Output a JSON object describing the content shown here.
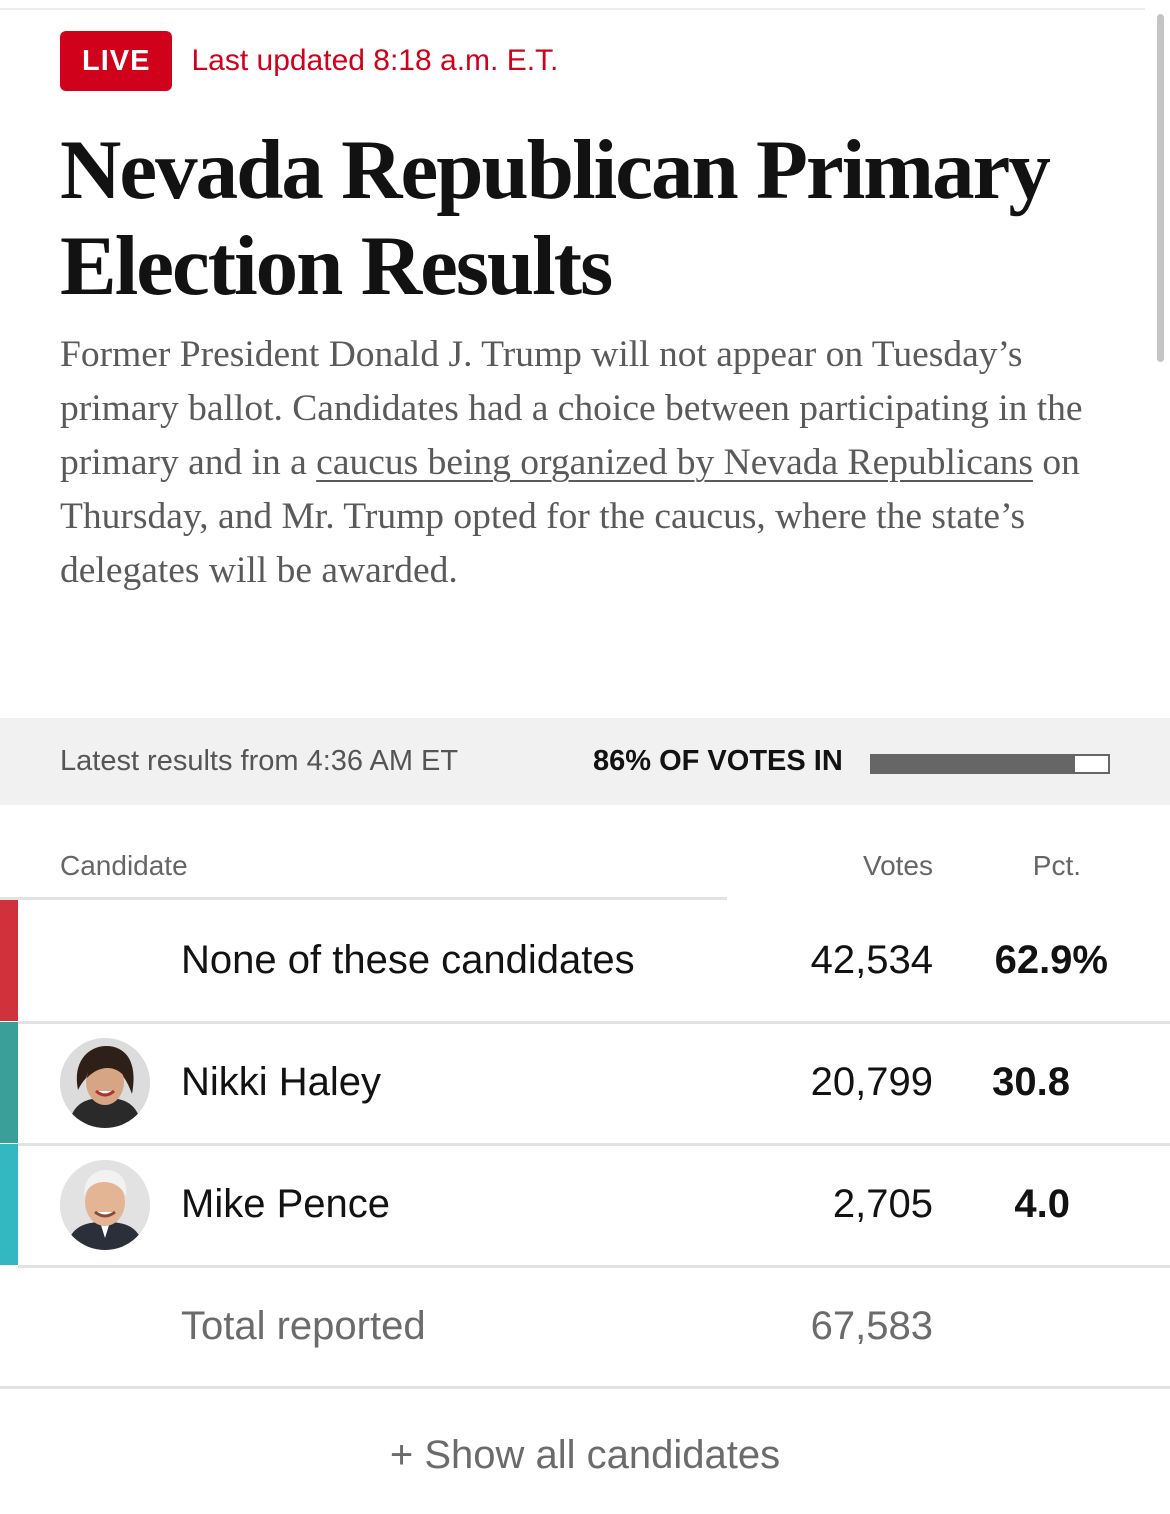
{
  "header": {
    "live_label": "LIVE",
    "last_updated": "Last updated 8:18 a.m. E.T."
  },
  "article": {
    "headline": "Nevada Republican Primary Election Results",
    "dek_before": "Former President Donald J. Trump will not appear on Tuesday’s primary ballot. Candidates had a choice between participating in the primary and in a ",
    "dek_link": "caucus being organized by Nevada Republicans",
    "dek_after": " on Thursday, and Mr. Trump opted for the caucus, where the state’s delegates will be awarded."
  },
  "status": {
    "latest_results": "Latest results from 4:36 AM ET",
    "votes_in_label": "86% OF VOTES IN",
    "votes_in_fraction": 0.86
  },
  "table": {
    "headers": {
      "candidate": "Candidate",
      "votes": "Votes",
      "pct": "Pct."
    },
    "rows": [
      {
        "name": "None of these candidates",
        "votes": "42,534",
        "pct": "62.9%",
        "party_color": "#d0313b",
        "avatar": "none"
      },
      {
        "name": "Nikki Haley",
        "votes": "20,799",
        "pct": "30.8",
        "party_color": "#3a9e99",
        "avatar": "nikki-haley-avatar"
      },
      {
        "name": "Mike Pence",
        "votes": "2,705",
        "pct": "4.0",
        "party_color": "#33b8c2",
        "avatar": "mike-pence-avatar"
      }
    ],
    "total": {
      "label": "Total reported",
      "votes": "67,583"
    }
  },
  "show_all": "+ Show all candidates"
}
